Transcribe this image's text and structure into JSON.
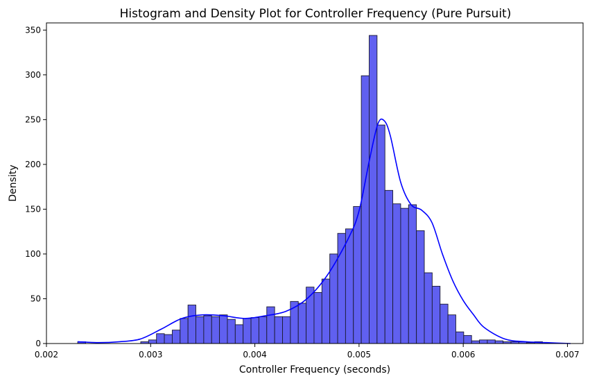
{
  "chart_data": {
    "type": "histogram",
    "title": "Histogram and Density Plot for Controller Frequency (Pure Pursuit)",
    "xlabel": "Controller Frequency (seconds)",
    "ylabel": "Density",
    "xlim": [
      0.002,
      0.00715
    ],
    "ylim": [
      0,
      358
    ],
    "x_ticks": [
      0.002,
      0.003,
      0.004,
      0.005,
      0.006,
      0.007
    ],
    "x_tick_labels": [
      "0.002",
      "0.003",
      "0.004",
      "0.005",
      "0.006",
      "0.007"
    ],
    "y_ticks": [
      0,
      50,
      100,
      150,
      200,
      250,
      300,
      350
    ],
    "y_tick_labels": [
      "0",
      "50",
      "100",
      "150",
      "200",
      "250",
      "300",
      "350"
    ],
    "grid": false,
    "legend": null,
    "bars": {
      "bin_start": 0.0023,
      "bin_width": 7.56e-05,
      "values": [
        2,
        0,
        0,
        0,
        0,
        0,
        0,
        0,
        2,
        4,
        11,
        10,
        15,
        28,
        43,
        30,
        31,
        30,
        32,
        27,
        21,
        28,
        29,
        30,
        41,
        30,
        30,
        47,
        45,
        63,
        57,
        72,
        100,
        123,
        128,
        153,
        299,
        344,
        244,
        171,
        156,
        151,
        155,
        126,
        79,
        64,
        44,
        32,
        13,
        9,
        3,
        4,
        4,
        3,
        2,
        2,
        2,
        1,
        2
      ],
      "fill_color": "#6060f0",
      "edge_color": "#1a1a2e"
    },
    "density_curve": {
      "color": "#0000ff",
      "x": [
        0.0023,
        0.0025,
        0.0027,
        0.0029,
        0.0031,
        0.0033,
        0.0035,
        0.0037,
        0.0039,
        0.0041,
        0.0043,
        0.0045,
        0.0047,
        0.0049,
        0.005,
        0.0051,
        0.00518,
        0.00524,
        0.0053,
        0.0054,
        0.0055,
        0.0056,
        0.0057,
        0.0058,
        0.0059,
        0.006,
        0.0061,
        0.0062,
        0.0064,
        0.0066,
        0.0068,
        0.00703
      ],
      "y": [
        2,
        1,
        2,
        5,
        16,
        28,
        32,
        31,
        28,
        31,
        36,
        50,
        77,
        118,
        148,
        205,
        245,
        249,
        232,
        180,
        155,
        149,
        135,
        100,
        70,
        48,
        32,
        18,
        5,
        2,
        1,
        0
      ]
    }
  }
}
